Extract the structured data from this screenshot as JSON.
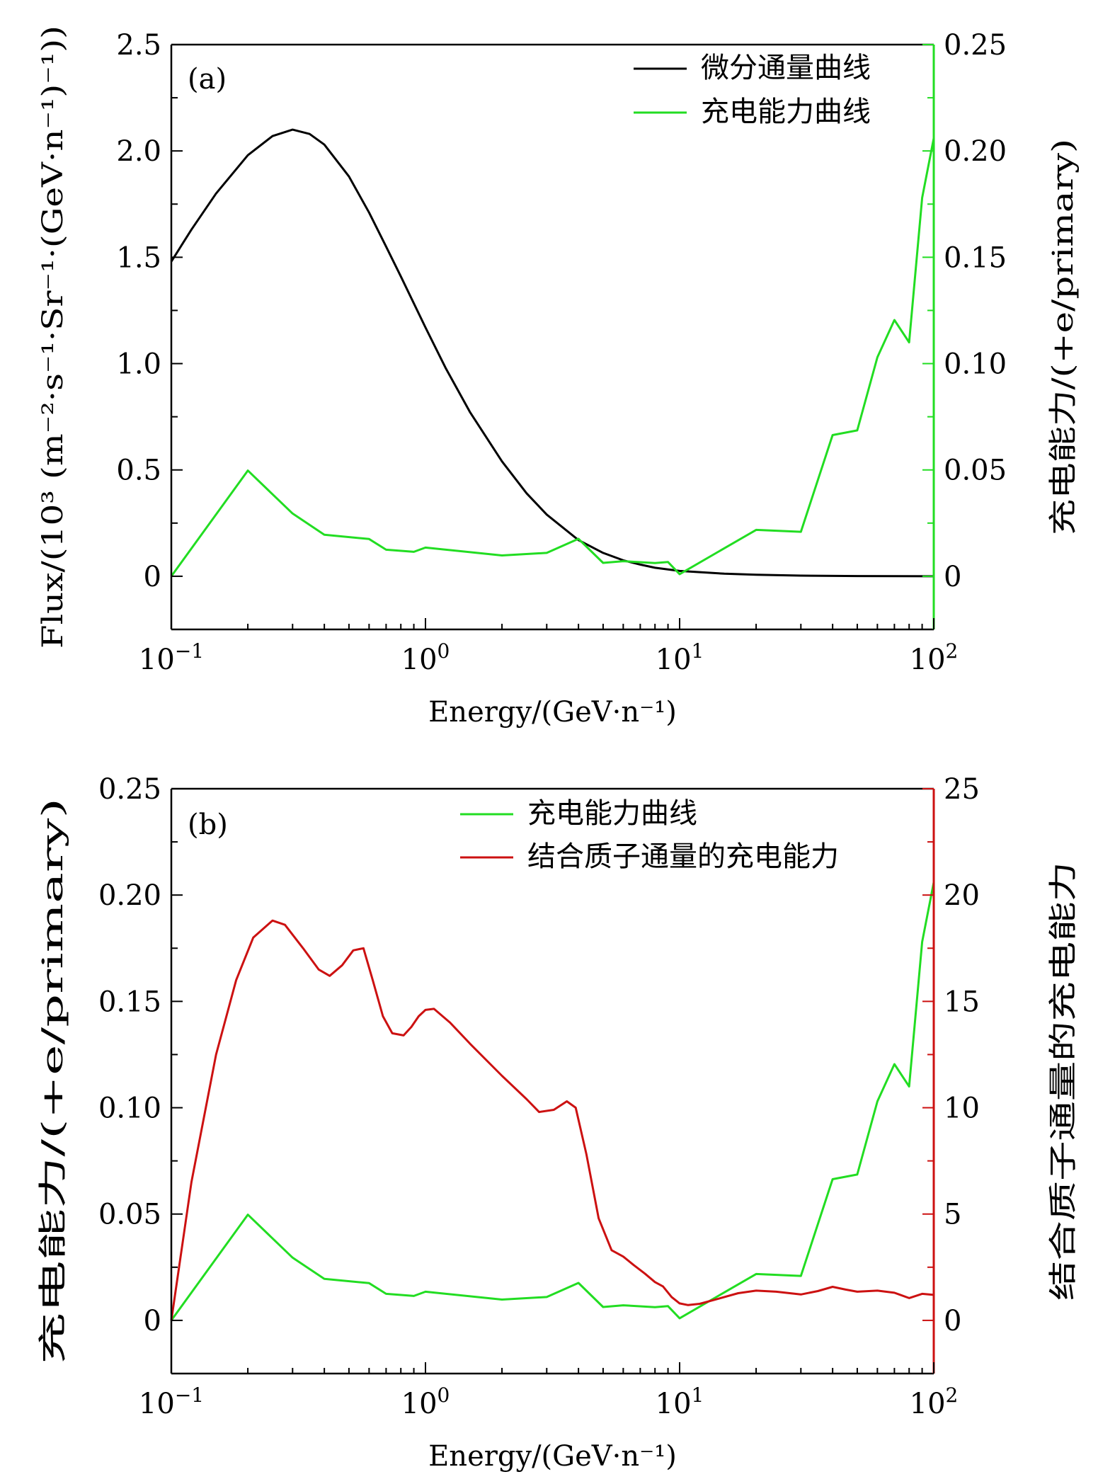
{
  "colors": {
    "flux": "#000000",
    "charge": "#22dd22",
    "combined": "#cc1111",
    "axis": "#000000"
  },
  "chart_data": [
    {
      "id": "a",
      "type": "line",
      "panel_label": "(a)",
      "xscale": "log",
      "xlim": [
        0.1,
        100
      ],
      "xticks": [
        {
          "value": 0.1,
          "base": "10",
          "exp": "−1"
        },
        {
          "value": 1,
          "base": "10",
          "exp": "0"
        },
        {
          "value": 10,
          "base": "10",
          "exp": "1"
        },
        {
          "value": 100,
          "base": "10",
          "exp": "2"
        }
      ],
      "xlabel": "Energy/(GeV·n⁻¹)",
      "ylabel_left": "Flux/(10³ (m⁻²·s⁻¹·Sr⁻¹·(GeV·n⁻¹)⁻¹))",
      "ylabel_right": "充电能力/(+e/primary)",
      "ylim_left": [
        -0.25,
        2.5
      ],
      "ylim_right": [
        -0.025,
        0.25
      ],
      "yticks_left": [
        "0",
        "0.5",
        "1.0",
        "1.5",
        "2.0",
        "2.5"
      ],
      "yticks_left_values": [
        0,
        0.5,
        1.0,
        1.5,
        2.0,
        2.5
      ],
      "yticks_right": [
        "0",
        "0.05",
        "0.10",
        "0.15",
        "0.20",
        "0.25"
      ],
      "yticks_right_values": [
        0,
        0.05,
        0.1,
        0.15,
        0.2,
        0.25
      ],
      "legend": [
        "微分通量曲线",
        "充电能力曲线"
      ],
      "legend_position": "top-right",
      "series": [
        {
          "name": "微分通量曲线",
          "axis": "left",
          "color_key": "flux",
          "x": [
            0.1,
            0.12,
            0.15,
            0.2,
            0.25,
            0.3,
            0.35,
            0.4,
            0.5,
            0.6,
            0.7,
            0.8,
            1.0,
            1.2,
            1.5,
            2,
            2.5,
            3,
            4,
            5,
            6,
            7,
            8,
            10,
            15,
            20,
            30,
            50,
            100
          ],
          "y": [
            1.48,
            1.63,
            1.8,
            1.98,
            2.07,
            2.1,
            2.08,
            2.03,
            1.88,
            1.71,
            1.55,
            1.41,
            1.17,
            0.98,
            0.77,
            0.54,
            0.39,
            0.29,
            0.17,
            0.11,
            0.075,
            0.055,
            0.04,
            0.025,
            0.012,
            0.007,
            0.003,
            0.001,
            0.0
          ]
        },
        {
          "name": "充电能力曲线",
          "axis": "right",
          "color_key": "charge",
          "x": [
            0.1,
            0.2,
            0.3,
            0.4,
            0.6,
            0.7,
            0.9,
            1,
            2,
            3,
            4,
            5,
            6,
            8,
            9,
            10,
            20,
            30,
            40,
            50,
            60,
            70,
            80,
            90,
            100
          ],
          "y": [
            0.0,
            0.0497,
            0.0295,
            0.0195,
            0.0175,
            0.0125,
            0.0115,
            0.0135,
            0.0098,
            0.011,
            0.0176,
            0.0063,
            0.0071,
            0.0062,
            0.0067,
            0.001,
            0.0218,
            0.0209,
            0.0664,
            0.0686,
            0.103,
            0.1205,
            0.11,
            0.178,
            0.206
          ]
        }
      ]
    },
    {
      "id": "b",
      "type": "line",
      "panel_label": "(b)",
      "xscale": "log",
      "xlim": [
        0.1,
        100
      ],
      "xticks": [
        {
          "value": 0.1,
          "base": "10",
          "exp": "−1"
        },
        {
          "value": 1,
          "base": "10",
          "exp": "0"
        },
        {
          "value": 10,
          "base": "10",
          "exp": "1"
        },
        {
          "value": 100,
          "base": "10",
          "exp": "2"
        }
      ],
      "xlabel": "Energy/(GeV·n⁻¹)",
      "ylabel_left": "充电能力/(+e/primary)",
      "ylabel_right": "结合质子通量的充电能力",
      "ylim_left": [
        -0.025,
        0.25
      ],
      "ylim_right": [
        -2.5,
        25
      ],
      "yticks_left": [
        "0",
        "0.05",
        "0.10",
        "0.15",
        "0.20",
        "0.25"
      ],
      "yticks_left_values": [
        0,
        0.05,
        0.1,
        0.15,
        0.2,
        0.25
      ],
      "yticks_right": [
        "0",
        "5",
        "10",
        "15",
        "20",
        "25"
      ],
      "yticks_right_values": [
        0,
        5,
        10,
        15,
        20,
        25
      ],
      "legend": [
        "充电能力曲线",
        "结合质子通量的充电能力"
      ],
      "legend_position": "top-right",
      "series": [
        {
          "name": "充电能力曲线",
          "axis": "left",
          "color_key": "charge",
          "x": [
            0.1,
            0.2,
            0.3,
            0.4,
            0.6,
            0.7,
            0.9,
            1,
            2,
            3,
            4,
            5,
            6,
            8,
            9,
            10,
            20,
            30,
            40,
            50,
            60,
            70,
            80,
            90,
            100
          ],
          "y": [
            0.0,
            0.0497,
            0.0295,
            0.0195,
            0.0175,
            0.0125,
            0.0115,
            0.0135,
            0.0098,
            0.011,
            0.0176,
            0.0063,
            0.0071,
            0.0062,
            0.0067,
            0.001,
            0.0218,
            0.0209,
            0.0664,
            0.0686,
            0.103,
            0.1205,
            0.11,
            0.178,
            0.206
          ]
        },
        {
          "name": "结合质子通量的充电能力",
          "axis": "right",
          "color_key": "combined",
          "x": [
            0.1,
            0.12,
            0.15,
            0.18,
            0.21,
            0.25,
            0.28,
            0.33,
            0.38,
            0.42,
            0.47,
            0.52,
            0.57,
            0.62,
            0.68,
            0.74,
            0.82,
            0.88,
            0.94,
            1.0,
            1.08,
            1.25,
            1.5,
            2.0,
            2.5,
            2.8,
            3.2,
            3.6,
            3.9,
            4.3,
            4.8,
            5.4,
            6.0,
            6.6,
            7.3,
            8.0,
            8.6,
            9.3,
            10.0,
            10.8,
            12,
            14,
            17,
            20,
            24,
            30,
            35,
            40,
            45,
            50,
            60,
            70,
            80,
            90,
            100
          ],
          "y": [
            0.0,
            6.5,
            12.5,
            16.0,
            18.0,
            18.8,
            18.6,
            17.5,
            16.5,
            16.2,
            16.7,
            17.4,
            17.5,
            16.0,
            14.3,
            13.5,
            13.4,
            13.8,
            14.3,
            14.6,
            14.65,
            14.0,
            13.0,
            11.5,
            10.4,
            9.8,
            9.9,
            10.3,
            10.0,
            7.8,
            4.8,
            3.3,
            3.0,
            2.6,
            2.2,
            1.8,
            1.6,
            1.1,
            0.8,
            0.72,
            0.78,
            1.0,
            1.28,
            1.4,
            1.35,
            1.22,
            1.38,
            1.58,
            1.45,
            1.35,
            1.4,
            1.3,
            1.05,
            1.25,
            1.2
          ]
        }
      ]
    }
  ]
}
